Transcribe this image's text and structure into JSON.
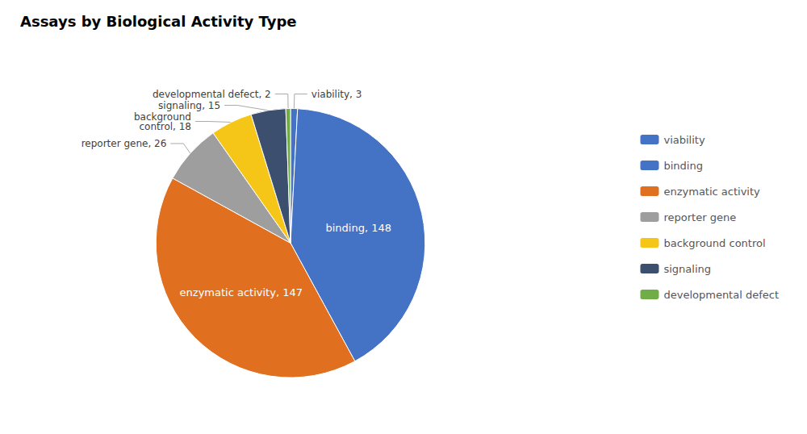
{
  "chart_data": {
    "type": "pie",
    "title": "Assays by Biological Activity Type",
    "categories": [
      "viability",
      "binding",
      "enzymatic activity",
      "reporter gene",
      "background control",
      "signaling",
      "developmental defect"
    ],
    "values": [
      3,
      148,
      147,
      26,
      18,
      15,
      2
    ],
    "colors": [
      "#4472C4",
      "#4472C4",
      "#E07020",
      "#9E9E9E",
      "#F5C518",
      "#3D4F6E",
      "#70AD47"
    ],
    "data_labels": true,
    "value_labels": [
      "viability, 3",
      "binding, 148",
      "enzymatic activity, 147",
      "reporter gene, 26",
      "background\ncontrol, 18",
      "signaling, 15",
      "developmental defect, 2"
    ],
    "legend": "right"
  }
}
